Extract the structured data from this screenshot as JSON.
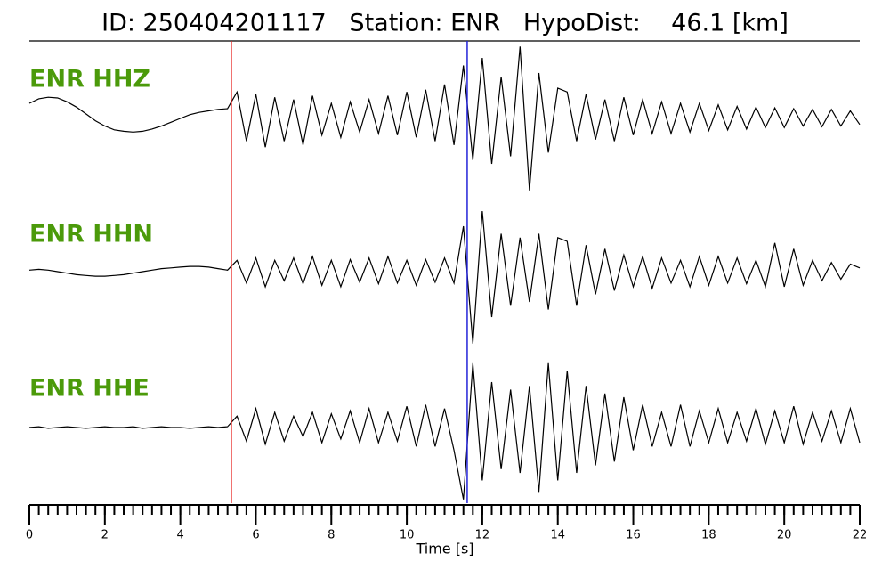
{
  "chart_data": {
    "type": "line",
    "title": "ID: 250404201117   Station: ENR   HypoDist:    46.1 [km]",
    "x_label": "Time [s]",
    "xlim": [
      0,
      22
    ],
    "xticks": [
      0,
      2,
      4,
      6,
      8,
      10,
      12,
      14,
      16,
      18,
      20,
      22
    ],
    "ylim": [
      -1,
      1
    ],
    "label_color": "#4b9a0a",
    "line_color": "#000000",
    "x": [
      0,
      0.25,
      0.5,
      0.75,
      1,
      1.25,
      1.5,
      1.75,
      2,
      2.25,
      2.5,
      2.75,
      3,
      3.25,
      3.5,
      3.75,
      4,
      4.25,
      4.5,
      4.75,
      5,
      5.25,
      5.5,
      5.75,
      6,
      6.25,
      6.5,
      6.75,
      7,
      7.25,
      7.5,
      7.75,
      8,
      8.25,
      8.5,
      8.75,
      9,
      9.25,
      9.5,
      9.75,
      10,
      10.25,
      10.5,
      10.75,
      11,
      11.25,
      11.5,
      11.75,
      12,
      12.25,
      12.5,
      12.75,
      13,
      13.25,
      13.5,
      13.75,
      14,
      14.25,
      14.5,
      14.75,
      15,
      15.25,
      15.5,
      15.75,
      16,
      16.25,
      16.5,
      16.75,
      17,
      17.25,
      17.5,
      17.75,
      18,
      18.25,
      18.5,
      18.75,
      19,
      19.25,
      19.5,
      19.75,
      20,
      20.25,
      20.5,
      20.75,
      21,
      21.25,
      21.5,
      21.75,
      22
    ],
    "series": [
      {
        "name": "ENR HHZ",
        "values": [
          0.2,
          0.26,
          0.28,
          0.27,
          0.22,
          0.15,
          0.06,
          -0.03,
          -0.1,
          -0.15,
          -0.17,
          -0.18,
          -0.17,
          -0.14,
          -0.1,
          -0.05,
          0,
          0.05,
          0.08,
          0.1,
          0.12,
          0.13,
          0.35,
          -0.3,
          0.32,
          -0.38,
          0.28,
          -0.3,
          0.25,
          -0.35,
          0.3,
          -0.22,
          0.2,
          -0.25,
          0.22,
          -0.18,
          0.25,
          -0.2,
          0.3,
          -0.22,
          0.35,
          -0.25,
          0.38,
          -0.3,
          0.45,
          -0.35,
          0.7,
          -0.55,
          0.8,
          -0.6,
          0.55,
          -0.5,
          0.95,
          -0.95,
          0.6,
          -0.45,
          0.4,
          0.35,
          -0.3,
          0.32,
          -0.28,
          0.25,
          -0.3,
          0.28,
          -0.22,
          0.25,
          -0.2,
          0.22,
          -0.2,
          0.2,
          -0.18,
          0.2,
          -0.16,
          0.18,
          -0.15,
          0.16,
          -0.14,
          0.15,
          -0.12,
          0.14,
          -0.12,
          0.13,
          -0.1,
          0.12,
          -0.11,
          0.12,
          -0.1,
          0.1,
          -0.08
        ]
      },
      {
        "name": "ENR HHN",
        "values": [
          0.02,
          0.03,
          0.02,
          0,
          -0.02,
          -0.04,
          -0.05,
          -0.06,
          -0.06,
          -0.05,
          -0.04,
          -0.02,
          0,
          0.02,
          0.04,
          0.05,
          0.06,
          0.07,
          0.07,
          0.06,
          0.04,
          0.02,
          0.15,
          -0.15,
          0.18,
          -0.2,
          0.15,
          -0.12,
          0.18,
          -0.16,
          0.2,
          -0.18,
          0.15,
          -0.2,
          0.16,
          -0.14,
          0.18,
          -0.16,
          0.2,
          -0.15,
          0.15,
          -0.18,
          0.16,
          -0.14,
          0.18,
          -0.15,
          0.6,
          -0.95,
          0.8,
          -0.6,
          0.5,
          -0.45,
          0.45,
          -0.4,
          0.5,
          -0.5,
          0.45,
          0.4,
          -0.45,
          0.35,
          -0.3,
          0.3,
          -0.25,
          0.22,
          -0.2,
          0.2,
          -0.22,
          0.18,
          -0.15,
          0.15,
          -0.2,
          0.2,
          -0.18,
          0.2,
          -0.15,
          0.18,
          -0.16,
          0.15,
          -0.2,
          0.38,
          -0.2,
          0.3,
          -0.18,
          0.15,
          -0.12,
          0.12,
          -0.1,
          0.1,
          0.05
        ]
      },
      {
        "name": "ENR HHE",
        "values": [
          0,
          0.01,
          -0.01,
          0,
          0.01,
          0,
          -0.01,
          0,
          0.01,
          0,
          0,
          0.01,
          -0.01,
          0,
          0.01,
          0,
          0,
          -0.01,
          0,
          0.01,
          0,
          0.01,
          0.15,
          -0.18,
          0.25,
          -0.22,
          0.2,
          -0.18,
          0.15,
          -0.12,
          0.2,
          -0.2,
          0.18,
          -0.15,
          0.22,
          -0.2,
          0.25,
          -0.2,
          0.2,
          -0.18,
          0.28,
          -0.25,
          0.3,
          -0.25,
          0.25,
          -0.3,
          -0.95,
          0.85,
          -0.7,
          0.6,
          -0.55,
          0.5,
          -0.6,
          0.55,
          -0.85,
          0.85,
          -0.7,
          0.75,
          -0.6,
          0.55,
          -0.5,
          0.45,
          -0.45,
          0.4,
          -0.3,
          0.3,
          -0.25,
          0.2,
          -0.25,
          0.3,
          -0.25,
          0.22,
          -0.2,
          0.25,
          -0.2,
          0.2,
          -0.18,
          0.25,
          -0.22,
          0.22,
          -0.2,
          0.28,
          -0.22,
          0.2,
          -0.18,
          0.22,
          -0.2,
          0.25,
          -0.2
        ]
      }
    ],
    "markers": [
      {
        "x": 5.35,
        "color": "#e8231f"
      },
      {
        "x": 11.6,
        "color": "#2424d8"
      }
    ]
  }
}
